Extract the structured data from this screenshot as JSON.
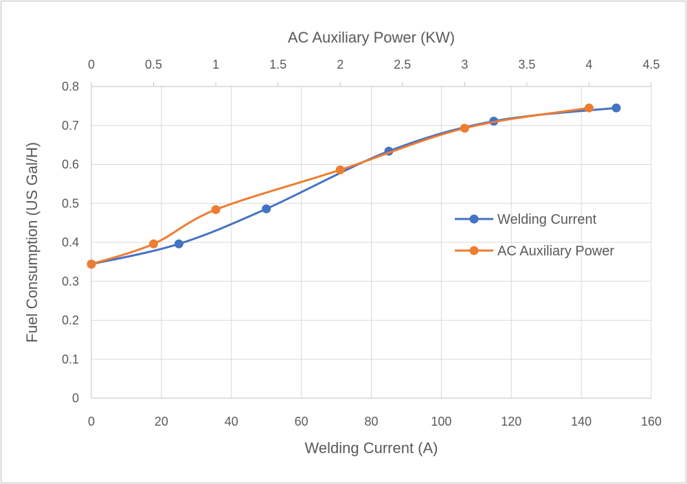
{
  "chart_data": {
    "type": "line",
    "smooth": true,
    "grid": true,
    "legend_position": "right",
    "x_axis_bottom": {
      "label": "Welding Current (A)",
      "range": [
        0,
        160
      ],
      "ticks": [
        0,
        20,
        40,
        60,
        80,
        100,
        120,
        140,
        160
      ]
    },
    "x_axis_top": {
      "label": "AC Auxiliary Power (KW)",
      "range": [
        0,
        4.5
      ],
      "ticks": [
        0,
        0.5,
        1,
        1.5,
        2,
        2.5,
        3,
        3.5,
        4,
        4.5
      ]
    },
    "y_axis": {
      "label": "Fuel Consumption (US Gal/H)",
      "range": [
        0,
        0.8
      ],
      "ticks": [
        0,
        0.1,
        0.2,
        0.3,
        0.4,
        0.5,
        0.6,
        0.7,
        0.8
      ]
    },
    "series": [
      {
        "name": "Welding Current",
        "axis": "bottom",
        "color": "#4472c4",
        "points": [
          [
            0,
            0.344
          ],
          [
            25,
            0.396
          ],
          [
            50,
            0.486
          ],
          [
            85,
            0.634
          ],
          [
            115,
            0.711
          ],
          [
            150,
            0.745
          ]
        ]
      },
      {
        "name": "AC Auxiliary Power",
        "axis": "top",
        "color": "#ed7d31",
        "points": [
          [
            0,
            0.344
          ],
          [
            0.5,
            0.396
          ],
          [
            1,
            0.484
          ],
          [
            2,
            0.586
          ],
          [
            3,
            0.693
          ],
          [
            4,
            0.745
          ]
        ]
      }
    ]
  }
}
